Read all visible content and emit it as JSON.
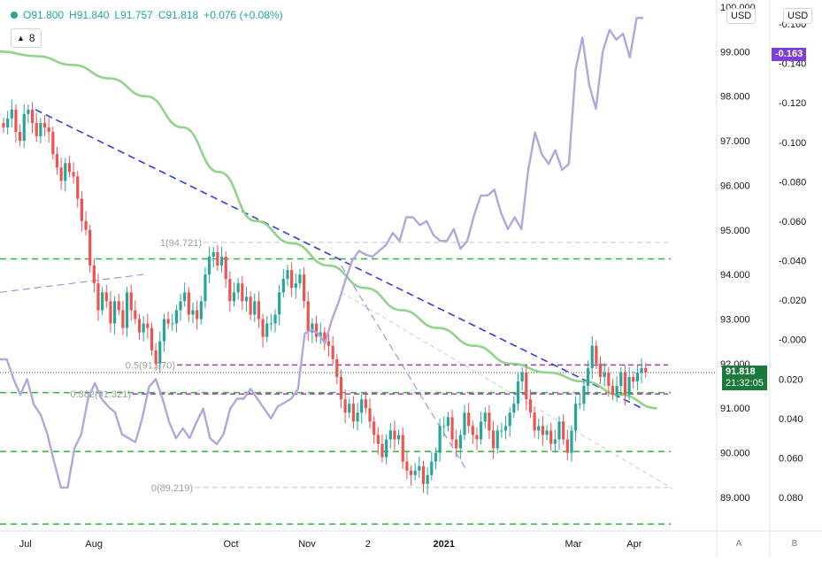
{
  "header": {
    "open_label": "O91.800",
    "high_label": "H91.840",
    "low_label": "L91.757",
    "close_label": "C91.818",
    "change_label": "+0.076 (+0.08%)",
    "interval": "8"
  },
  "axes": {
    "left_currency": "USD",
    "right_currency": "USD",
    "left_top_partial": "100.000",
    "right_top_partial": "-0.160",
    "bottom_btn_a": "A",
    "bottom_btn_b": "B"
  },
  "price_tags": {
    "last_price": "91.818",
    "countdown": "21:32:05",
    "spread_value": "-0.163"
  },
  "fib_labels": {
    "level_1": "1(94.721)",
    "level_05": "0.5(91.970)",
    "level_0382": "0.382(91.321)",
    "level_0": "0(89.219)"
  },
  "colors": {
    "bull": "#26a69a",
    "bear": "#ef5350",
    "sma": "#8fd48a",
    "spread_line": "#b3a5de",
    "trend_line": "#2f3ee0",
    "green_dash": "#2eb33a",
    "purple_dash": "#9c27b0",
    "price_tag_bg": "#1b7a3a",
    "spread_tag_bg": "#7e3fd6"
  },
  "chart_data": {
    "type": "candlestick",
    "title": "",
    "left_axis": {
      "label": "USD",
      "ticks": [
        "100.000",
        "99.000",
        "98.000",
        "97.000",
        "96.000",
        "95.000",
        "94.000",
        "93.000",
        "92.000",
        "91.000",
        "90.000",
        "89.000"
      ],
      "range": [
        88.4,
        100.0
      ]
    },
    "right_axis": {
      "label": "USD",
      "ticks": [
        "-0.160",
        "-0.140",
        "-0.120",
        "-0.100",
        "-0.080",
        "-0.060",
        "-0.040",
        "-0.020",
        "-0.000",
        "0.020",
        "0.040",
        "0.060",
        "0.080"
      ],
      "range_top": -0.168,
      "range_bottom": 0.094,
      "inverted": true
    },
    "x_ticks": [
      "Jul",
      "Aug",
      "Oct",
      "Nov",
      "2",
      "2021",
      "Mar",
      "Apr"
    ],
    "x_tick_weeks": [
      3,
      12,
      30,
      40,
      48,
      58,
      75,
      83
    ],
    "candle_closes": [
      97.3,
      97.5,
      97.7,
      97.2,
      97.0,
      97.6,
      97.7,
      97.4,
      97.1,
      97.4,
      97.3,
      97.2,
      96.7,
      96.4,
      96.1,
      96.5,
      96.3,
      96.2,
      95.7,
      95.2,
      95.0,
      94.2,
      93.8,
      93.2,
      93.6,
      93.4,
      92.9,
      93.4,
      93.2,
      92.8,
      93.6,
      93.2,
      93.0,
      92.7,
      92.9,
      92.8,
      92.3,
      92.0,
      92.5,
      93.0,
      92.9,
      92.9,
      93.2,
      93.4,
      93.6,
      93.1,
      93.2,
      93.0,
      93.4,
      94.0,
      94.4,
      94.5,
      94.2,
      94.4,
      93.9,
      93.4,
      93.6,
      93.8,
      93.4,
      93.5,
      93.1,
      93.4,
      93.0,
      92.6,
      92.9,
      92.9,
      93.1,
      93.6,
      93.9,
      94.1,
      93.7,
      93.8,
      94.0,
      93.4,
      92.7,
      92.9,
      92.6,
      92.7,
      92.5,
      92.4,
      92.1,
      91.7,
      91.2,
      90.9,
      91.1,
      90.7,
      90.9,
      91.2,
      91.0,
      90.7,
      90.4,
      90.2,
      89.9,
      90.3,
      90.5,
      90.3,
      90.4,
      89.8,
      89.6,
      89.5,
      89.6,
      89.7,
      89.3,
      89.5,
      89.8,
      90.0,
      90.6,
      90.6,
      90.8,
      90.3,
      90.1,
      90.4,
      90.9,
      90.6,
      90.4,
      90.3,
      90.7,
      90.9,
      90.5,
      90.1,
      90.5,
      90.5,
      90.6,
      90.9,
      91.1,
      91.6,
      91.8,
      91.2,
      90.9,
      90.5,
      90.6,
      90.4,
      90.5,
      90.2,
      90.3,
      90.7,
      90.3,
      90.0,
      90.5,
      91.1,
      91.1,
      91.5,
      91.9,
      92.4,
      92.0,
      91.7,
      91.8,
      91.5,
      91.3,
      91.5,
      91.8,
      91.3,
      91.7,
      91.6,
      91.8,
      91.9,
      91.8
    ],
    "spread_values": [
      0.01,
      0.01,
      0.02,
      0.028,
      0.02,
      0.033,
      0.038,
      0.048,
      0.062,
      0.075,
      0.075,
      0.055,
      0.048,
      0.03,
      0.022,
      0.03,
      0.034,
      0.037,
      0.048,
      0.05,
      0.052,
      0.04,
      0.024,
      0.02,
      0.03,
      0.042,
      0.05,
      0.045,
      0.05,
      0.042,
      0.035,
      0.05,
      0.053,
      0.048,
      0.035,
      0.03,
      0.03,
      0.025,
      0.03,
      0.035,
      0.04,
      0.034,
      0.032,
      0.03,
      0.025,
      -0.003,
      -0.005,
      -0.003,
      0.002,
      -0.01,
      -0.019,
      -0.03,
      -0.04,
      -0.045,
      -0.043,
      -0.042,
      -0.045,
      -0.048,
      -0.054,
      -0.05,
      -0.062,
      -0.062,
      -0.058,
      -0.06,
      -0.053,
      -0.05,
      -0.05,
      -0.056,
      -0.046,
      -0.05,
      -0.063,
      -0.073,
      -0.073,
      -0.076,
      -0.064,
      -0.056,
      -0.062,
      -0.056,
      -0.086,
      -0.105,
      -0.094,
      -0.089,
      -0.096,
      -0.086,
      -0.089,
      -0.137,
      -0.153,
      -0.129,
      -0.117,
      -0.146,
      -0.157,
      -0.152,
      -0.155,
      -0.143,
      -0.163,
      -0.163
    ],
    "sma_values": [
      99.0,
      98.9,
      98.7,
      98.4,
      98.0,
      97.3,
      96.3,
      95.2,
      94.7,
      94.2,
      93.7,
      93.2,
      92.8,
      92.4,
      92.0,
      91.8,
      91.6,
      91.3,
      91.0
    ],
    "fib_levels": [
      {
        "label": "1(94.721)",
        "value": 94.721
      },
      {
        "label": "0.5(91.970)",
        "value": 91.97
      },
      {
        "label": "0.382(91.321)",
        "value": 91.321
      },
      {
        "label": "0(89.219)",
        "value": 89.219
      }
    ],
    "horizontal_levels": [
      94.35,
      91.35,
      90.03,
      88.4
    ],
    "last_price": 91.818,
    "last_spread": -0.163
  }
}
